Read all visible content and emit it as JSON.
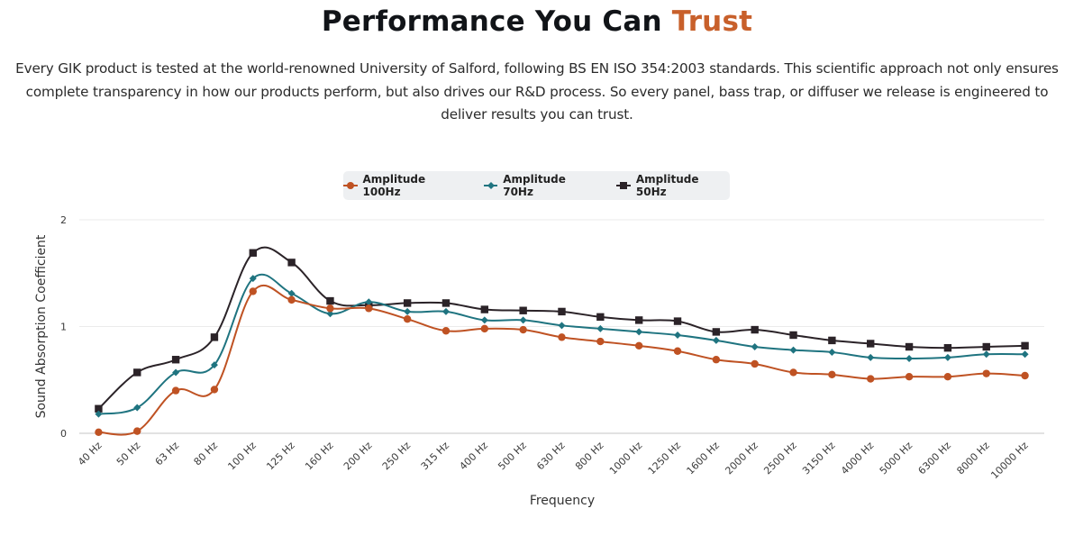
{
  "header": {
    "title_main": "Performance You Can ",
    "title_accent": "Trust",
    "description": "Every GIK product is tested at the world-renowned University of Salford, following BS EN ISO 354:2003 standards. This scientific approach not only ensures complete transparency in how our products perform, but also drives our R&D process. So every panel, bass trap, or diffuser we release is engineered to deliver results you can trust."
  },
  "colors": {
    "accent": "#c8602b",
    "series_100": "#bf5223",
    "series_70": "#1f7480",
    "series_50": "#2b2328",
    "legend_bg": "#eef0f2",
    "grid": "#ebebeb",
    "axis": "#c6c6c6"
  },
  "chart_data": {
    "type": "line",
    "title": "",
    "xlabel": "Frequency",
    "ylabel": "Sound Absorption Coefficient",
    "ylim": [
      0,
      2
    ],
    "yticks": [
      "0",
      "1",
      "2"
    ],
    "grid": true,
    "legend_position": "top-center",
    "categories": [
      "40 Hz",
      "50 Hz",
      "63 Hz",
      "80 Hz",
      "100 Hz",
      "125 Hz",
      "160 Hz",
      "200 Hz",
      "250 Hz",
      "315 Hz",
      "400 Hz",
      "500 Hz",
      "630 Hz",
      "800 Hz",
      "1000 Hz",
      "1250 Hz",
      "1600 Hz",
      "2000 Hz",
      "2500 Hz",
      "3150 Hz",
      "4000 Hz",
      "5000 Hz",
      "6300 Hz",
      "8000 Hz",
      "10000 Hz"
    ],
    "series": [
      {
        "name": "Amplitude 100Hz",
        "color": "#bf5223",
        "marker": "circle",
        "values": [
          0.01,
          0.02,
          0.4,
          0.41,
          1.33,
          1.25,
          1.17,
          1.17,
          1.07,
          0.96,
          0.98,
          0.97,
          0.9,
          0.86,
          0.82,
          0.77,
          0.69,
          0.65,
          0.57,
          0.55,
          0.51,
          0.53,
          0.53,
          0.56,
          0.54
        ]
      },
      {
        "name": "Amplitude 70Hz",
        "color": "#1f7480",
        "marker": "diamond",
        "values": [
          0.18,
          0.24,
          0.57,
          0.64,
          1.45,
          1.31,
          1.12,
          1.23,
          1.14,
          1.14,
          1.06,
          1.06,
          1.01,
          0.98,
          0.95,
          0.92,
          0.87,
          0.81,
          0.78,
          0.76,
          0.71,
          0.7,
          0.71,
          0.74,
          0.74
        ]
      },
      {
        "name": "Amplitude 50Hz",
        "color": "#2b2328",
        "marker": "square",
        "values": [
          0.23,
          0.57,
          0.69,
          0.9,
          1.69,
          1.6,
          1.24,
          1.2,
          1.22,
          1.22,
          1.16,
          1.15,
          1.14,
          1.09,
          1.06,
          1.05,
          0.95,
          0.97,
          0.92,
          0.87,
          0.84,
          0.81,
          0.8,
          0.81,
          0.82
        ]
      }
    ]
  }
}
